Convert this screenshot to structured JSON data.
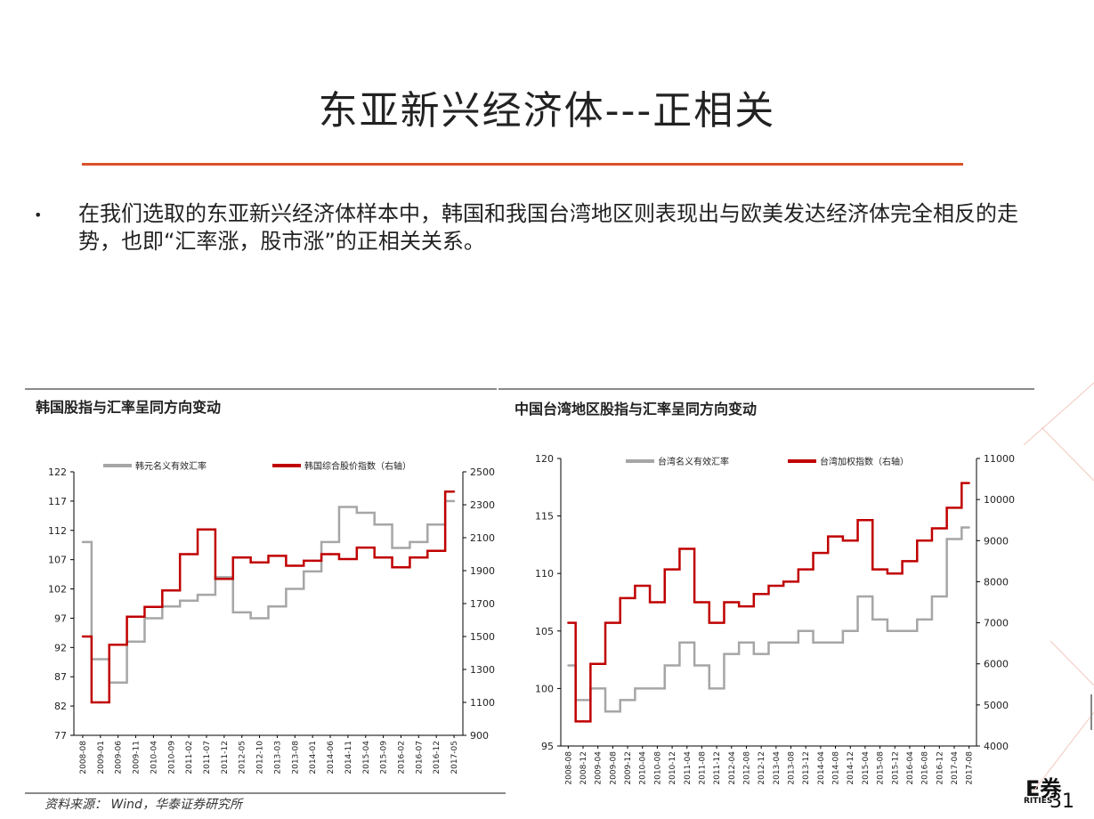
{
  "slide": {
    "title": "东亚新兴经济体---正相关",
    "bullet": "在我们选取的东亚新兴经济体样本中，韩国和我国台湾地区则表现出与欧美发达经济体完全相反的走势，也即“汇率涨，股市涨”的正相关关系。",
    "source": "资料来源： Wind，华泰证券研究所",
    "page_number": "31",
    "logo_text": "E券",
    "logo_sub": "RITIES",
    "accent_color": "#d9522a"
  },
  "chart_data": [
    {
      "type": "line",
      "title": "韩国股指与汇率呈同方向变动",
      "x": [
        "2008-08",
        "2009-01",
        "2009-06",
        "2009-11",
        "2010-04",
        "2010-09",
        "2011-02",
        "2011-07",
        "2011-12",
        "2012-05",
        "2012-10",
        "2013-03",
        "2013-08",
        "2014-01",
        "2014-06",
        "2014-11",
        "2015-04",
        "2015-09",
        "2016-02",
        "2016-07",
        "2016-12",
        "2017-05"
      ],
      "y_left": {
        "range": [
          77,
          122
        ],
        "ticks": [
          77,
          82,
          87,
          92,
          97,
          102,
          107,
          112,
          117,
          122
        ]
      },
      "y_right": {
        "range": [
          900,
          2500
        ],
        "ticks": [
          900,
          1100,
          1300,
          1500,
          1700,
          1900,
          2100,
          2300,
          2500
        ]
      },
      "series": [
        {
          "name": "韩元名义有效汇率",
          "axis": "left",
          "color": "#a6a6a6",
          "values": [
            110,
            90,
            86,
            93,
            97,
            99,
            100,
            101,
            104,
            98,
            97,
            99,
            102,
            105,
            110,
            116,
            115,
            113,
            109,
            110,
            113,
            117
          ]
        },
        {
          "name": "韩国综合股价指数（右轴）",
          "axis": "right",
          "color": "#c00000",
          "values": [
            1500,
            1100,
            1450,
            1620,
            1680,
            1780,
            2000,
            2150,
            1850,
            1980,
            1950,
            1990,
            1930,
            1960,
            2000,
            1970,
            2040,
            1980,
            1920,
            1980,
            2020,
            2380
          ]
        }
      ]
    },
    {
      "type": "line",
      "title": "中国台湾地区股指与汇率呈同方向变动",
      "x": [
        "2008-08",
        "2008-12",
        "2009-04",
        "2009-08",
        "2009-12",
        "2010-04",
        "2010-08",
        "2010-12",
        "2011-04",
        "2011-08",
        "2011-12",
        "2012-04",
        "2012-08",
        "2012-12",
        "2013-04",
        "2013-08",
        "2013-12",
        "2014-04",
        "2014-08",
        "2014-12",
        "2015-04",
        "2015-08",
        "2015-12",
        "2016-04",
        "2016-08",
        "2016-12",
        "2017-04",
        "2017-08"
      ],
      "y_left": {
        "range": [
          95,
          120
        ],
        "ticks": [
          95,
          100,
          105,
          110,
          115,
          120
        ]
      },
      "y_right": {
        "range": [
          4000,
          11000
        ],
        "ticks": [
          4000,
          5000,
          6000,
          7000,
          8000,
          9000,
          10000,
          11000
        ]
      },
      "series": [
        {
          "name": "台湾名义有效汇率",
          "axis": "left",
          "color": "#a6a6a6",
          "values": [
            102,
            99,
            100,
            98,
            99,
            100,
            100,
            102,
            104,
            102,
            100,
            103,
            104,
            103,
            104,
            104,
            105,
            104,
            104,
            105,
            108,
            106,
            105,
            105,
            106,
            108,
            113,
            114
          ]
        },
        {
          "name": "台湾加权指数（右轴）",
          "axis": "right",
          "color": "#c00000",
          "values": [
            7000,
            4600,
            6000,
            7000,
            7600,
            7900,
            7500,
            8300,
            8800,
            7500,
            7000,
            7500,
            7400,
            7700,
            7900,
            8000,
            8300,
            8700,
            9100,
            9000,
            9500,
            8300,
            8200,
            8500,
            9000,
            9300,
            9800,
            10400
          ]
        }
      ]
    }
  ]
}
